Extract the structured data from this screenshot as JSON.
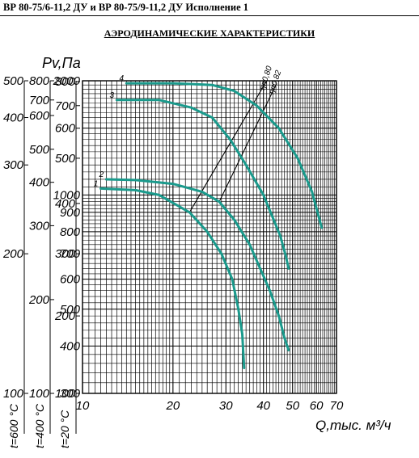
{
  "header": {
    "title": "ВР 80-75/6-11,2 ДУ и ВР 80-75/9-11,2 ДУ Исполнение 1"
  },
  "page_title": "АЭРОДИНАМИЧЕСКИЕ ХАРАКТЕРИСТИКИ",
  "chart_data": {
    "type": "line",
    "title": "",
    "ylabel": "Pv,Па",
    "xlabel": "Q,тыс. м³/ч",
    "x_scale": "log",
    "y_scale": "log",
    "xlim": [
      10,
      70
    ],
    "ylim": [
      300,
      2000
    ],
    "x_ticks": [
      "10",
      "20",
      "30",
      "40",
      "50",
      "60",
      "70"
    ],
    "y_ticks_main": [
      "300",
      "400",
      "500",
      "600",
      "700",
      "800",
      "900",
      "1000",
      "2000"
    ],
    "temperature_scales": [
      {
        "label": "t=600 °C",
        "ticks": [
          [
            "100",
            300
          ],
          [
            "200",
            700
          ],
          [
            "300",
            1200
          ],
          [
            "400",
            1600
          ],
          [
            "500",
            2000
          ]
        ]
      },
      {
        "label": "t=400 °C",
        "ticks": [
          [
            "100",
            300
          ],
          [
            "200",
            530
          ],
          [
            "300",
            830
          ],
          [
            "400",
            1080
          ],
          [
            "500",
            1320
          ],
          [
            "600",
            1620
          ],
          [
            "700",
            1780
          ],
          [
            "800",
            2000
          ]
        ]
      },
      {
        "label": "t=20 °C",
        "ticks": [
          [
            "100",
            300
          ],
          [
            "200",
            480
          ],
          [
            "300",
            700
          ],
          [
            "400",
            950
          ],
          [
            "500",
            1250
          ],
          [
            "600",
            1500
          ],
          [
            "700",
            1720
          ],
          [
            "800",
            1990
          ]
        ]
      }
    ],
    "efficiency_lines": [
      {
        "label": "ηп0,80",
        "points": [
          [
            22.7,
            900
          ],
          [
            41,
            2000
          ]
        ]
      },
      {
        "label": "ηп0,82",
        "points": [
          [
            28.5,
            960
          ],
          [
            44,
            1950
          ]
        ]
      }
    ],
    "series": [
      {
        "name": "1",
        "points": [
          [
            11.5,
            1040
          ],
          [
            15,
            1030
          ],
          [
            18,
            1000
          ],
          [
            22.7,
            900
          ],
          [
            26,
            800
          ],
          [
            29,
            700
          ],
          [
            31.5,
            600
          ],
          [
            33,
            500
          ],
          [
            34,
            430
          ],
          [
            34.5,
            350
          ]
        ]
      },
      {
        "name": "2",
        "points": [
          [
            12,
            1100
          ],
          [
            15,
            1095
          ],
          [
            20,
            1070
          ],
          [
            25,
            1020
          ],
          [
            28.5,
            960
          ],
          [
            32,
            860
          ],
          [
            36,
            740
          ],
          [
            39,
            640
          ],
          [
            42,
            560
          ],
          [
            45,
            480
          ],
          [
            47,
            420
          ],
          [
            48.5,
            390
          ]
        ]
      },
      {
        "name": "3",
        "points": [
          [
            13,
            1780
          ],
          [
            18,
            1780
          ],
          [
            23,
            1700
          ],
          [
            27,
            1600
          ],
          [
            31,
            1400
          ],
          [
            35,
            1200
          ],
          [
            40,
            1000
          ],
          [
            43,
            870
          ],
          [
            45.5,
            780
          ],
          [
            47.5,
            690
          ],
          [
            48.5,
            640
          ]
        ]
      },
      {
        "name": "4",
        "points": [
          [
            14,
            1970
          ],
          [
            20,
            1970
          ],
          [
            27,
            1950
          ],
          [
            32,
            1880
          ],
          [
            38,
            1720
          ],
          [
            45,
            1500
          ],
          [
            52,
            1250
          ],
          [
            58,
            1020
          ],
          [
            61,
            880
          ],
          [
            62.5,
            820
          ]
        ]
      }
    ]
  }
}
